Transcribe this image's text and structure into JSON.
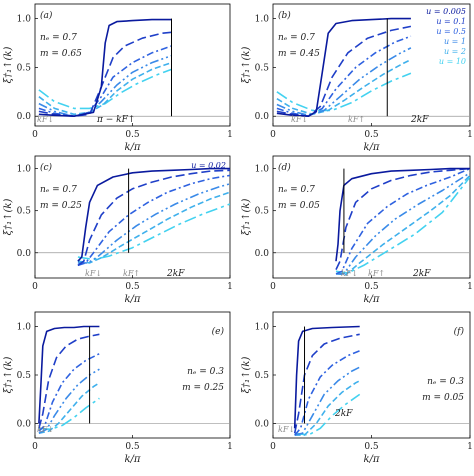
{
  "figure": {
    "xlabel": "k/π",
    "ylabel": "ξ†₁↑(k)"
  },
  "colors": {
    "u_0.005": "#0a1a9e",
    "u_0.1": "#1f3fc8",
    "u_0.5": "#2f62e0",
    "u_1": "#3a8ae8",
    "u_2": "#3fb0ec",
    "u_10": "#43d2f0",
    "marker_line": "#000000",
    "kF_small": "#888888",
    "tick_orange": "#f0a020"
  },
  "legend": {
    "entries": [
      "u = 0.005",
      "u = 0.1",
      "u = 0.5",
      "u = 1",
      "u = 2",
      "u = 10"
    ]
  },
  "chart_data": [
    {
      "panel": "(a)",
      "type": "line",
      "params": [
        "n_e = 0.7",
        "m = 0.65"
      ],
      "annotations": [
        "k_F↓",
        "π − k_F↑"
      ],
      "xlim": [
        0,
        1
      ],
      "ylim": [
        -0.1,
        1.15
      ],
      "xticks": [
        "0",
        "0.5",
        "1"
      ],
      "yticks": [
        "0.0",
        "0.5",
        "1.0"
      ],
      "series": [
        {
          "u": "0.005",
          "x": [
            0.02,
            0.1,
            0.2,
            0.3,
            0.34,
            0.36,
            0.38,
            0.42,
            0.5,
            0.6,
            0.7
          ],
          "y": [
            0.02,
            0.01,
            0.0,
            0.04,
            0.3,
            0.75,
            0.93,
            0.97,
            0.98,
            0.99,
            0.99
          ]
        },
        {
          "u": "0.1",
          "x": [
            0.02,
            0.1,
            0.2,
            0.28,
            0.34,
            0.4,
            0.46,
            0.55,
            0.65,
            0.7
          ],
          "y": [
            0.05,
            0.02,
            0.0,
            0.02,
            0.3,
            0.6,
            0.72,
            0.8,
            0.85,
            0.86
          ]
        },
        {
          "u": "0.5",
          "x": [
            0.02,
            0.1,
            0.2,
            0.28,
            0.34,
            0.4,
            0.5,
            0.6,
            0.7
          ],
          "y": [
            0.08,
            0.03,
            0.0,
            0.04,
            0.2,
            0.4,
            0.55,
            0.65,
            0.72
          ]
        },
        {
          "u": "1",
          "x": [
            0.02,
            0.1,
            0.2,
            0.28,
            0.34,
            0.42,
            0.5,
            0.6,
            0.7
          ],
          "y": [
            0.13,
            0.05,
            0.0,
            0.04,
            0.15,
            0.32,
            0.45,
            0.55,
            0.62
          ]
        },
        {
          "u": "2",
          "x": [
            0.02,
            0.1,
            0.2,
            0.28,
            0.35,
            0.42,
            0.5,
            0.6,
            0.7
          ],
          "y": [
            0.2,
            0.08,
            0.02,
            0.04,
            0.12,
            0.26,
            0.38,
            0.48,
            0.55
          ]
        },
        {
          "u": "10",
          "x": [
            0.02,
            0.1,
            0.2,
            0.28,
            0.36,
            0.44,
            0.52,
            0.62,
            0.7
          ],
          "y": [
            0.27,
            0.15,
            0.08,
            0.08,
            0.13,
            0.24,
            0.33,
            0.42,
            0.48
          ]
        }
      ],
      "vlines": [
        0.7
      ]
    },
    {
      "panel": "(b)",
      "type": "line",
      "params": [
        "n_e = 0.7",
        "m = 0.45"
      ],
      "annotations": [
        "k_F↓",
        "k_F↑",
        "2k_F"
      ],
      "xlim": [
        0,
        1
      ],
      "ylim": [
        -0.1,
        1.15
      ],
      "xticks": [
        "0",
        "0.5",
        "1"
      ],
      "yticks": [
        "0.0",
        "0.5",
        "1.0"
      ],
      "series": [
        {
          "u": "0.005",
          "x": [
            0.02,
            0.1,
            0.18,
            0.22,
            0.25,
            0.28,
            0.32,
            0.4,
            0.5,
            0.6,
            0.7
          ],
          "y": [
            0.03,
            0.01,
            0.0,
            0.05,
            0.45,
            0.85,
            0.95,
            0.98,
            0.99,
            1.0,
            1.0
          ]
        },
        {
          "u": "0.1",
          "x": [
            0.02,
            0.1,
            0.18,
            0.24,
            0.3,
            0.38,
            0.48,
            0.6,
            0.7
          ],
          "y": [
            0.05,
            0.02,
            0.0,
            0.1,
            0.4,
            0.65,
            0.8,
            0.88,
            0.92
          ]
        },
        {
          "u": "0.5",
          "x": [
            0.02,
            0.1,
            0.18,
            0.25,
            0.32,
            0.42,
            0.52,
            0.62,
            0.7
          ],
          "y": [
            0.08,
            0.03,
            0.0,
            0.08,
            0.28,
            0.5,
            0.65,
            0.76,
            0.82
          ]
        },
        {
          "u": "1",
          "x": [
            0.02,
            0.1,
            0.18,
            0.26,
            0.34,
            0.44,
            0.54,
            0.64,
            0.7
          ],
          "y": [
            0.12,
            0.05,
            0.01,
            0.06,
            0.2,
            0.38,
            0.52,
            0.64,
            0.7
          ]
        },
        {
          "u": "2",
          "x": [
            0.02,
            0.1,
            0.2,
            0.28,
            0.36,
            0.46,
            0.56,
            0.66,
            0.7
          ],
          "y": [
            0.18,
            0.08,
            0.02,
            0.06,
            0.16,
            0.3,
            0.43,
            0.54,
            0.58
          ]
        },
        {
          "u": "10",
          "x": [
            0.02,
            0.1,
            0.2,
            0.3,
            0.4,
            0.5,
            0.6,
            0.7
          ],
          "y": [
            0.25,
            0.14,
            0.06,
            0.06,
            0.14,
            0.26,
            0.36,
            0.44
          ]
        }
      ],
      "vlines": [
        0.58
      ]
    },
    {
      "panel": "(c)",
      "type": "line",
      "params": [
        "n_e = 0.7",
        "m = 0.25"
      ],
      "annotations": [
        "u = 0.02",
        "k_F↓",
        "k_F↑",
        "2k_F"
      ],
      "xlim": [
        0,
        1
      ],
      "ylim": [
        -0.3,
        1.15
      ],
      "xticks": [
        "0",
        "0.5",
        "1"
      ],
      "yticks": [
        "0.0",
        "0.5",
        "1.0"
      ],
      "series": [
        {
          "u": "0.02",
          "x": [
            0.22,
            0.24,
            0.26,
            0.28,
            0.32,
            0.4,
            0.5,
            0.6,
            0.7,
            0.8,
            0.9,
            1.0
          ],
          "y": [
            -0.1,
            -0.05,
            0.3,
            0.6,
            0.8,
            0.9,
            0.95,
            0.97,
            0.98,
            0.99,
            1.0,
            1.0
          ]
        },
        {
          "u": "0.1",
          "x": [
            0.22,
            0.25,
            0.28,
            0.34,
            0.42,
            0.5,
            0.6,
            0.7,
            0.8,
            0.9,
            1.0
          ],
          "y": [
            -0.15,
            -0.1,
            0.15,
            0.45,
            0.65,
            0.76,
            0.84,
            0.9,
            0.94,
            0.97,
            0.98
          ]
        },
        {
          "u": "0.5",
          "x": [
            0.22,
            0.26,
            0.3,
            0.38,
            0.48,
            0.58,
            0.68,
            0.8,
            0.9,
            1.0
          ],
          "y": [
            -0.15,
            -0.12,
            0.0,
            0.25,
            0.45,
            0.6,
            0.72,
            0.82,
            0.88,
            0.92
          ]
        },
        {
          "u": "1",
          "x": [
            0.22,
            0.27,
            0.32,
            0.42,
            0.52,
            0.62,
            0.72,
            0.84,
            0.94,
            1.0
          ],
          "y": [
            -0.12,
            -0.12,
            -0.05,
            0.15,
            0.32,
            0.46,
            0.58,
            0.7,
            0.78,
            0.82
          ]
        },
        {
          "u": "2",
          "x": [
            0.22,
            0.28,
            0.34,
            0.44,
            0.56,
            0.68,
            0.8,
            0.9,
            1.0
          ],
          "y": [
            -0.1,
            -0.12,
            -0.06,
            0.08,
            0.24,
            0.4,
            0.54,
            0.64,
            0.72
          ]
        },
        {
          "u": "10",
          "x": [
            0.22,
            0.3,
            0.38,
            0.5,
            0.62,
            0.74,
            0.86,
            1.0
          ],
          "y": [
            -0.05,
            -0.08,
            -0.04,
            0.06,
            0.2,
            0.34,
            0.46,
            0.58
          ]
        }
      ],
      "vlines": [
        0.48
      ]
    },
    {
      "panel": "(d)",
      "type": "line",
      "params": [
        "n_e = 0.7",
        "m = 0.05"
      ],
      "annotations": [
        "k_F↓",
        "k_F↑",
        "2k_F"
      ],
      "xlim": [
        0,
        1
      ],
      "ylim": [
        -0.3,
        1.15
      ],
      "xticks": [
        "0",
        "0.5",
        "1"
      ],
      "yticks": [
        "0.0",
        "0.5",
        "1.0"
      ],
      "series": [
        {
          "u": "0.005",
          "x": [
            0.32,
            0.33,
            0.34,
            0.36,
            0.4,
            0.5,
            0.6,
            0.7,
            0.8,
            0.9,
            1.0
          ],
          "y": [
            -0.1,
            0.1,
            0.5,
            0.8,
            0.88,
            0.94,
            0.97,
            0.98,
            0.99,
            1.0,
            1.0
          ]
        },
        {
          "u": "0.1",
          "x": [
            0.32,
            0.34,
            0.37,
            0.42,
            0.5,
            0.6,
            0.7,
            0.8,
            0.9,
            1.0
          ],
          "y": [
            -0.2,
            -0.1,
            0.3,
            0.6,
            0.76,
            0.86,
            0.92,
            0.96,
            0.98,
            1.0
          ]
        },
        {
          "u": "0.5",
          "x": [
            0.32,
            0.35,
            0.4,
            0.48,
            0.58,
            0.68,
            0.78,
            0.9,
            1.0
          ],
          "y": [
            -0.25,
            -0.22,
            0.05,
            0.35,
            0.55,
            0.7,
            0.8,
            0.9,
            1.0
          ]
        },
        {
          "u": "1",
          "x": [
            0.32,
            0.36,
            0.42,
            0.52,
            0.62,
            0.74,
            0.86,
            1.0
          ],
          "y": [
            -0.25,
            -0.25,
            -0.05,
            0.2,
            0.4,
            0.58,
            0.74,
            0.95
          ]
        },
        {
          "u": "2",
          "x": [
            0.32,
            0.37,
            0.44,
            0.56,
            0.68,
            0.8,
            0.9,
            1.0
          ],
          "y": [
            -0.25,
            -0.26,
            -0.12,
            0.1,
            0.3,
            0.5,
            0.68,
            0.92
          ]
        },
        {
          "u": "10",
          "x": [
            0.32,
            0.38,
            0.46,
            0.58,
            0.72,
            0.86,
            1.0
          ],
          "y": [
            -0.22,
            -0.24,
            -0.15,
            0.02,
            0.22,
            0.48,
            0.9
          ]
        }
      ],
      "vlines": [
        0.36
      ]
    },
    {
      "panel": "(e)",
      "type": "line",
      "params": [
        "n_e = 0.3",
        "m = 0.25"
      ],
      "annotations": [
        "k_F↓"
      ],
      "xlim": [
        0,
        1
      ],
      "ylim": [
        -0.15,
        1.15
      ],
      "xticks": [
        "0",
        "0.5",
        "1"
      ],
      "yticks": [
        "0.0",
        "0.5",
        "1.0"
      ],
      "series": [
        {
          "u": "0.005",
          "x": [
            0.02,
            0.03,
            0.04,
            0.06,
            0.1,
            0.15,
            0.2,
            0.25,
            0.3,
            0.33
          ],
          "y": [
            0.0,
            0.4,
            0.8,
            0.95,
            0.98,
            0.99,
            0.99,
            1.0,
            1.0,
            1.0
          ]
        },
        {
          "u": "0.1",
          "x": [
            0.02,
            0.04,
            0.07,
            0.11,
            0.16,
            0.22,
            0.28,
            0.33
          ],
          "y": [
            -0.05,
            0.1,
            0.45,
            0.68,
            0.8,
            0.87,
            0.9,
            0.92
          ]
        },
        {
          "u": "0.5",
          "x": [
            0.02,
            0.05,
            0.09,
            0.14,
            0.2,
            0.26,
            0.33
          ],
          "y": [
            -0.08,
            -0.02,
            0.22,
            0.42,
            0.56,
            0.65,
            0.72
          ]
        },
        {
          "u": "1",
          "x": [
            0.02,
            0.06,
            0.1,
            0.16,
            0.22,
            0.28,
            0.33
          ],
          "y": [
            -0.1,
            -0.06,
            0.08,
            0.26,
            0.4,
            0.5,
            0.56
          ]
        },
        {
          "u": "2",
          "x": [
            0.02,
            0.07,
            0.12,
            0.18,
            0.24,
            0.3,
            0.33
          ],
          "y": [
            -0.1,
            -0.08,
            0.0,
            0.14,
            0.28,
            0.38,
            0.42
          ]
        },
        {
          "u": "10",
          "x": [
            0.02,
            0.08,
            0.14,
            0.2,
            0.26,
            0.33
          ],
          "y": [
            -0.05,
            -0.06,
            -0.02,
            0.06,
            0.16,
            0.26
          ]
        }
      ],
      "vlines": [
        0.28
      ]
    },
    {
      "panel": "(f)",
      "type": "line",
      "params": [
        "n_e = 0.3",
        "m = 0.05"
      ],
      "annotations": [
        "k_F↓",
        "2k_F"
      ],
      "xlim": [
        0,
        1
      ],
      "ylim": [
        -0.15,
        1.15
      ],
      "xticks": [
        "0",
        "0.5",
        "1"
      ],
      "yticks": [
        "0.0",
        "0.5",
        "1.0"
      ],
      "series": [
        {
          "u": "0.005",
          "x": [
            0.11,
            0.12,
            0.13,
            0.15,
            0.2,
            0.3,
            0.44
          ],
          "y": [
            -0.05,
            0.5,
            0.85,
            0.95,
            0.98,
            0.99,
            1.0
          ]
        },
        {
          "u": "0.1",
          "x": [
            0.11,
            0.13,
            0.16,
            0.2,
            0.26,
            0.34,
            0.44
          ],
          "y": [
            -0.1,
            0.1,
            0.5,
            0.7,
            0.82,
            0.88,
            0.92
          ]
        },
        {
          "u": "0.5",
          "x": [
            0.11,
            0.14,
            0.18,
            0.24,
            0.3,
            0.38,
            0.44
          ],
          "y": [
            -0.12,
            -0.05,
            0.25,
            0.48,
            0.6,
            0.7,
            0.75
          ]
        },
        {
          "u": "1",
          "x": [
            0.11,
            0.15,
            0.2,
            0.26,
            0.33,
            0.4,
            0.44
          ],
          "y": [
            -0.12,
            -0.1,
            0.08,
            0.3,
            0.44,
            0.54,
            0.58
          ]
        },
        {
          "u": "2",
          "x": [
            0.11,
            0.16,
            0.22,
            0.28,
            0.35,
            0.42,
            0.44
          ],
          "y": [
            -0.12,
            -0.12,
            0.0,
            0.18,
            0.32,
            0.42,
            0.44
          ]
        },
        {
          "u": "10",
          "x": [
            0.11,
            0.18,
            0.24,
            0.3,
            0.37,
            0.44
          ],
          "y": [
            -0.1,
            -0.12,
            -0.05,
            0.08,
            0.2,
            0.3
          ]
        }
      ],
      "vlines": [
        0.16
      ]
    }
  ]
}
